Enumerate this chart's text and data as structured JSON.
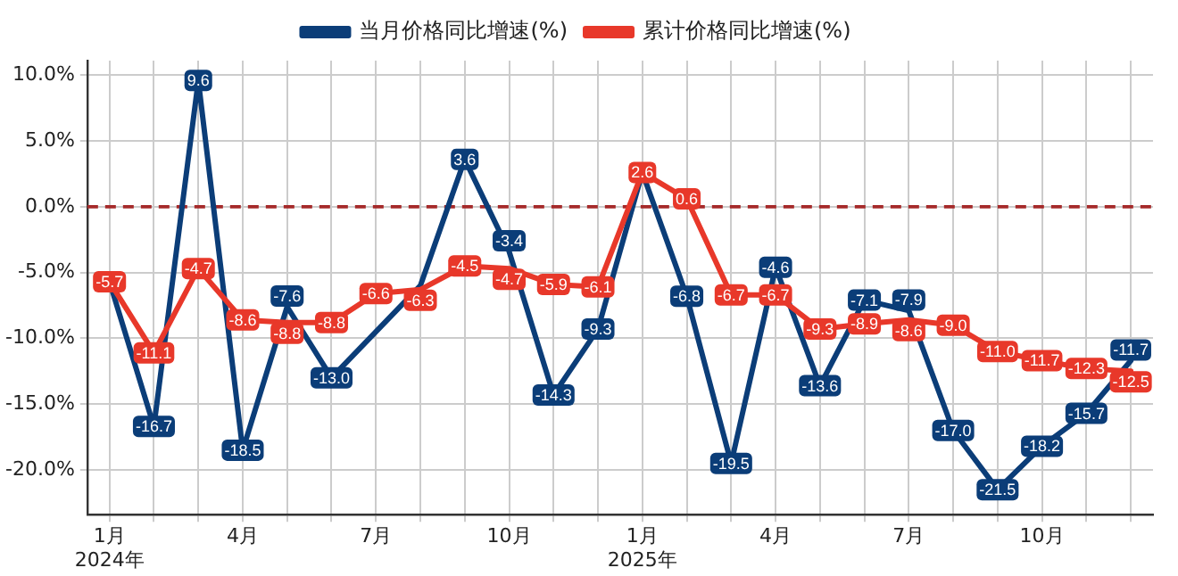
{
  "chart_data": {
    "type": "line",
    "categories": [
      "1月\n2024年",
      null,
      null,
      "4月",
      null,
      null,
      "7月",
      null,
      null,
      "10月",
      null,
      null,
      "1月\n2025年",
      null,
      null,
      "4月",
      null,
      null,
      "7月",
      null,
      null,
      "10月",
      null,
      null
    ],
    "series": [
      {
        "name": "当月价格同比增速(%)",
        "color": "#0b3d78",
        "values": [
          -5.7,
          -16.7,
          9.6,
          -18.5,
          -7.6,
          -13.0,
          null,
          -6.0,
          3.6,
          -3.4,
          -14.3,
          -9.3,
          2.6,
          -6.8,
          -19.5,
          -4.6,
          -13.6,
          -7.1,
          -7.9,
          -17.0,
          -21.5,
          -18.2,
          -15.7,
          -11.7
        ],
        "value_labels": [
          null,
          "-16.7",
          "9.6",
          "-18.5",
          "-7.6",
          "-13.0",
          null,
          null,
          "3.6",
          "-3.4",
          "-14.3",
          "-9.3",
          null,
          "-6.8",
          "-19.5",
          "-4.6",
          "-13.6",
          "-7.1",
          "-7.9",
          "-17.0",
          "-21.5",
          "-18.2",
          "-15.7",
          "-11.7"
        ]
      },
      {
        "name": "累计价格同比增速(%)",
        "color": "#e8382a",
        "values": [
          -5.7,
          -11.1,
          -4.7,
          -8.6,
          -8.8,
          -8.8,
          -6.6,
          -6.3,
          -4.5,
          -4.7,
          -5.9,
          -6.1,
          2.6,
          0.6,
          -6.7,
          -6.7,
          -9.3,
          -8.9,
          -8.6,
          -9.0,
          -11.0,
          -11.7,
          -12.3,
          -12.5
        ],
        "value_labels": [
          "-5.7",
          "-11.1",
          "-4.7",
          "-8.6",
          "-8.8",
          "-8.8",
          "-6.6",
          "-6.3",
          "-4.5",
          "-4.7",
          "-5.9",
          "-6.1",
          "2.6",
          "0.6",
          "-6.7",
          "-6.7",
          "-9.3",
          "-8.9",
          "-8.6",
          "-9.0",
          "-11.0",
          "-11.7",
          "-12.3",
          "-12.5"
        ]
      }
    ],
    "ylim": [
      -23.4,
      11.1
    ],
    "yticks": [
      {
        "value": -20,
        "label": "-20.0%"
      },
      {
        "value": -15,
        "label": "-15.0%"
      },
      {
        "value": -10,
        "label": "-10.0%"
      },
      {
        "value": -5,
        "label": "-5.0%"
      },
      {
        "value": 0,
        "label": "0.0%"
      },
      {
        "value": 5,
        "label": "5.0%"
      },
      {
        "value": 10,
        "label": "10.0%"
      }
    ],
    "ref_lines": [
      {
        "axis": "y",
        "value": 0,
        "color": "#a52a2a",
        "line_style": "dashed"
      }
    ],
    "grid": true,
    "legend": "top",
    "line_style": "solid"
  }
}
